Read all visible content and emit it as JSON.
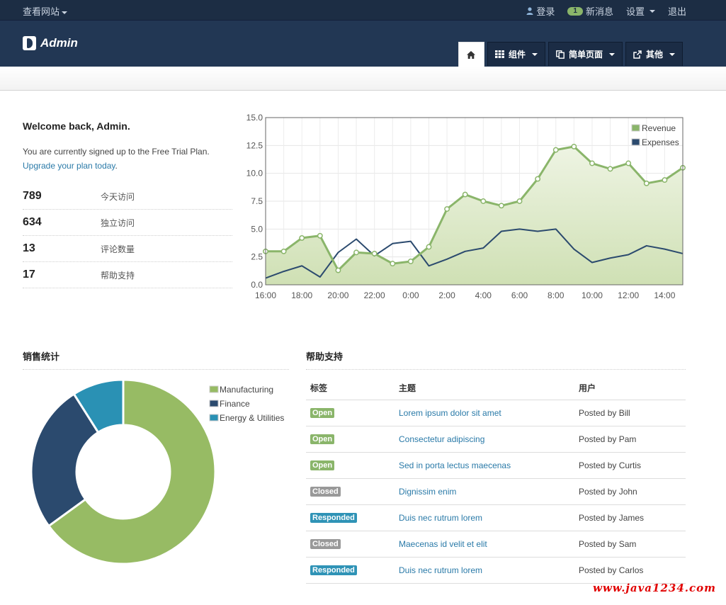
{
  "topbar": {
    "view_site": "查看网站",
    "login": "登录",
    "messages_count": "1",
    "messages": "新消息",
    "settings": "设置",
    "logout": "退出"
  },
  "brand": "Admin",
  "nav": {
    "components": "组件",
    "simple_pages": "简单页面",
    "other": "其他"
  },
  "welcome": {
    "title": "Welcome back, Admin.",
    "plan_text": "You are currently signed up to the Free Trial Plan.",
    "upgrade_link": "Upgrade your plan today",
    "upgrade_suffix": "."
  },
  "stats": [
    {
      "value": "789",
      "label": "今天访问"
    },
    {
      "value": "634",
      "label": "独立访问"
    },
    {
      "value": "13",
      "label": "评论数量"
    },
    {
      "value": "17",
      "label": "帮助支持"
    }
  ],
  "chart_data": [
    {
      "type": "area",
      "x": [
        "16:00",
        "17:00",
        "18:00",
        "19:00",
        "20:00",
        "21:00",
        "22:00",
        "23:00",
        "0:00",
        "1:00",
        "2:00",
        "3:00",
        "4:00",
        "5:00",
        "6:00",
        "7:00",
        "8:00",
        "9:00",
        "10:00",
        "11:00",
        "12:00",
        "13:00",
        "14:00",
        "15:00"
      ],
      "tick_labels": [
        "16:00",
        "18:00",
        "20:00",
        "22:00",
        "0:00",
        "2:00",
        "4:00",
        "6:00",
        "8:00",
        "10:00",
        "12:00",
        "14:00"
      ],
      "series": [
        {
          "name": "Revenue",
          "values": [
            3.0,
            3.0,
            4.2,
            4.4,
            1.3,
            2.9,
            2.8,
            1.9,
            2.1,
            3.4,
            6.8,
            8.1,
            7.5,
            7.1,
            7.5,
            9.5,
            12.1,
            12.4,
            10.9,
            10.4,
            10.9,
            9.1,
            9.4,
            10.5
          ],
          "color": "#8ab56a"
        },
        {
          "name": "Expenses",
          "values": [
            0.6,
            1.2,
            1.7,
            0.7,
            2.9,
            4.1,
            2.6,
            3.7,
            3.9,
            1.7,
            2.3,
            3.0,
            3.3,
            4.8,
            5.0,
            4.8,
            5.0,
            3.2,
            2.0,
            2.4,
            2.7,
            3.5,
            3.2,
            2.8
          ],
          "color": "#2b4a6e"
        }
      ],
      "ylim": [
        0,
        15
      ],
      "yticks": [
        "0.0",
        "2.5",
        "5.0",
        "7.5",
        "10.0",
        "12.5",
        "15.0"
      ],
      "grid": true,
      "legend": "top-right"
    },
    {
      "type": "pie",
      "donut": true,
      "slices": [
        {
          "name": "Manufacturing",
          "value": 65,
          "color": "#97bb64"
        },
        {
          "name": "Finance",
          "value": 26,
          "color": "#2b4a6e"
        },
        {
          "name": "Energy & Utilities",
          "value": 9,
          "color": "#2a91b4"
        }
      ],
      "legend": "top-right"
    }
  ],
  "sales": {
    "title": "销售统计"
  },
  "support": {
    "title": "帮助支持",
    "headers": {
      "tag": "标签",
      "subject": "主题",
      "user": "用户"
    },
    "rows": [
      {
        "tag": "Open",
        "kind": "open",
        "subject": "Lorem ipsum dolor sit amet",
        "user": "Posted by Bill"
      },
      {
        "tag": "Open",
        "kind": "open",
        "subject": "Consectetur adipiscing",
        "user": "Posted by Pam"
      },
      {
        "tag": "Open",
        "kind": "open",
        "subject": "Sed in porta lectus maecenas",
        "user": "Posted by Curtis"
      },
      {
        "tag": "Closed",
        "kind": "closed",
        "subject": "Dignissim enim",
        "user": "Posted by John"
      },
      {
        "tag": "Responded",
        "kind": "responded",
        "subject": "Duis nec rutrum lorem",
        "user": "Posted by James"
      },
      {
        "tag": "Closed",
        "kind": "closed",
        "subject": "Maecenas id velit et elit",
        "user": "Posted by Sam"
      },
      {
        "tag": "Responded",
        "kind": "responded",
        "subject": "Duis nec rutrum lorem",
        "user": "Posted by Carlos"
      }
    ]
  },
  "watermark": "www.java1234.com"
}
